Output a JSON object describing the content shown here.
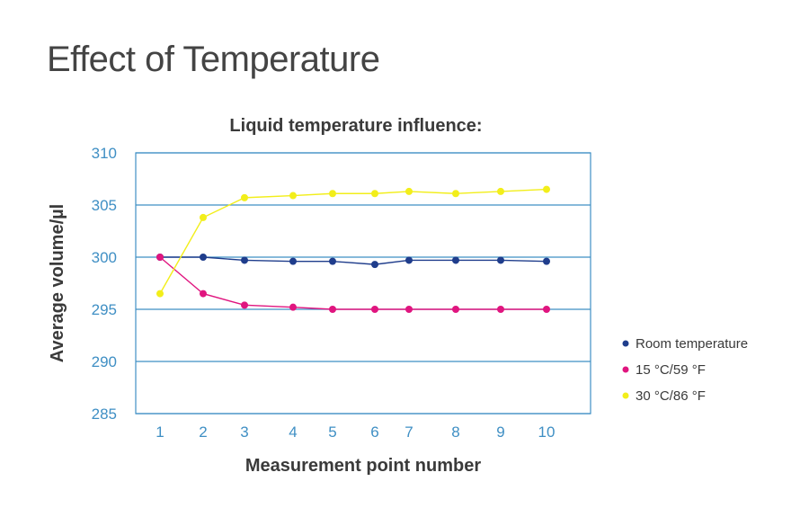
{
  "page": {
    "title": "Effect of Temperature"
  },
  "chart_data": {
    "type": "line",
    "title": "Liquid temperature influence:",
    "xlabel": "Measurement point number",
    "ylabel": "Average volume/µl",
    "x": [
      1,
      2,
      3,
      4,
      5,
      6,
      7,
      8,
      9,
      10
    ],
    "xticks": [
      "1",
      "2",
      "3",
      "4",
      "5",
      "6",
      "7",
      "8",
      "9",
      "10"
    ],
    "yticks": [
      "310",
      "305",
      "300",
      "295",
      "290",
      "285"
    ],
    "ylim": [
      285,
      310
    ],
    "grid": "horizontal",
    "legend_position": "right",
    "series": [
      {
        "name": "Room temperature",
        "color": "#1f3d8c",
        "values": [
          300.0,
          300.0,
          299.7,
          299.6,
          299.6,
          299.3,
          299.7,
          299.7,
          299.7,
          299.6
        ]
      },
      {
        "name": "15 °C/59 °F",
        "color": "#e0157f",
        "values": [
          300.0,
          296.5,
          295.4,
          295.2,
          295.0,
          295.0,
          295.0,
          295.0,
          295.0,
          295.0
        ]
      },
      {
        "name": "30 °C/86 °F",
        "color": "#f2ee1a",
        "values": [
          296.5,
          303.8,
          305.7,
          305.9,
          306.1,
          306.1,
          306.3,
          306.1,
          306.3,
          306.5
        ]
      }
    ]
  }
}
